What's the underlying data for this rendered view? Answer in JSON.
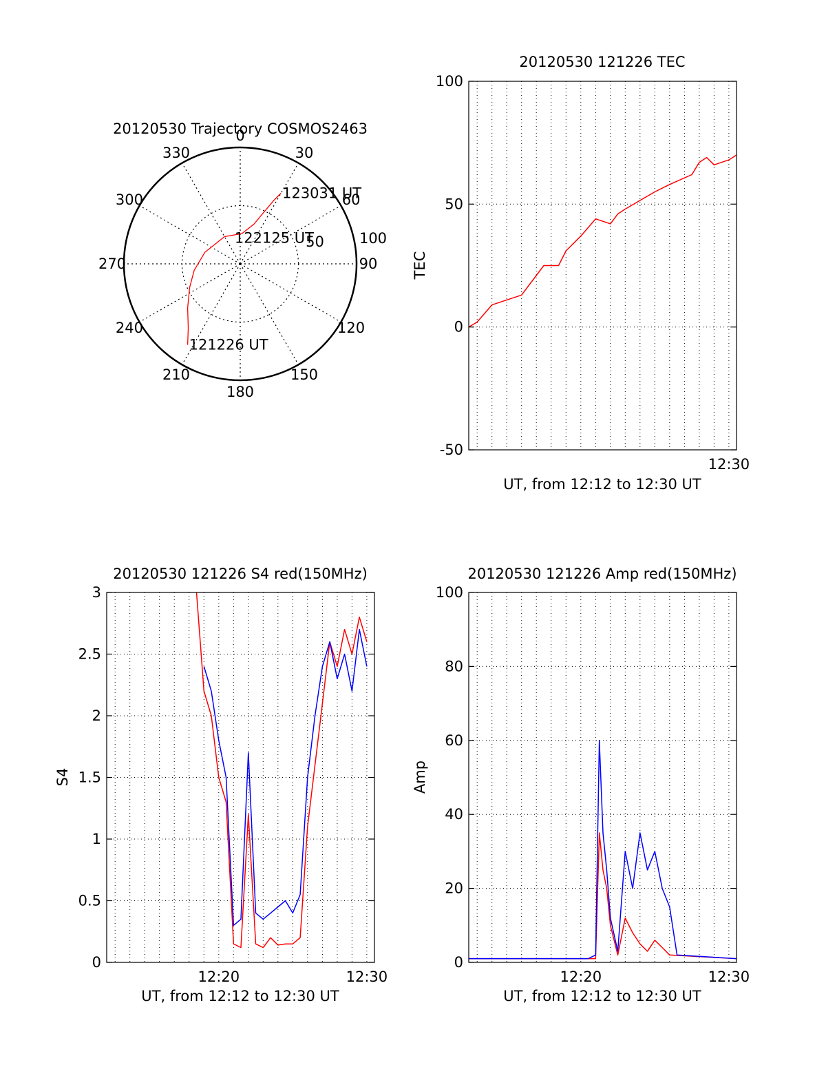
{
  "chart_data": [
    {
      "type": "polar",
      "title": "20120530 Trajectory COSMOS2463",
      "azimuth_labels": [
        "0",
        "30",
        "60",
        "90",
        "120",
        "150",
        "180",
        "210",
        "240",
        "270",
        "300",
        "330"
      ],
      "radial_labels": [
        "50",
        "100"
      ],
      "rlim": [
        0,
        100
      ],
      "grid": true,
      "series": [
        {
          "color": "#ff0000",
          "points": [
            {
              "az": 213,
              "r": 83
            },
            {
              "az": 219,
              "r": 71
            },
            {
              "az": 230,
              "r": 59
            },
            {
              "az": 245,
              "r": 48
            },
            {
              "az": 262,
              "r": 40
            },
            {
              "az": 288,
              "r": 32
            },
            {
              "az": 330,
              "r": 27
            },
            {
              "az": 3,
              "r": 26
            },
            {
              "az": 19,
              "r": 36
            },
            {
              "az": 25,
              "r": 50
            },
            {
              "az": 28,
              "r": 62
            },
            {
              "az": 30,
              "r": 70
            }
          ]
        }
      ],
      "annotations": [
        {
          "text": "123031 UT",
          "az": 30,
          "r": 70
        },
        {
          "text": "122125 UT",
          "az": 345,
          "r": 23
        },
        {
          "text": "121226 UT",
          "az": 213,
          "r": 83
        }
      ]
    },
    {
      "type": "line",
      "title": "20120530 121226 TEC",
      "xlabel": "UT, from 12:12 to 12:30 UT",
      "ylabel": "TEC",
      "xlim": [
        "12:12:26",
        "12:30:31"
      ],
      "ylim": [
        -50,
        100
      ],
      "yticks": [
        -50,
        0,
        50,
        100
      ],
      "xticks": [
        "12:30"
      ],
      "grid": true,
      "series": [
        {
          "color": "#ff0000",
          "x": [
            "12:12:26",
            "12:13:00",
            "12:14:00",
            "12:15:00",
            "12:16:00",
            "12:17:30",
            "12:18:30",
            "12:19:00",
            "12:20:00",
            "12:21:00",
            "12:22:00",
            "12:22:30",
            "12:23:00",
            "12:25:00",
            "12:26:00",
            "12:27:30",
            "12:28:00",
            "12:28:30",
            "12:29:00",
            "12:30:00",
            "12:30:31"
          ],
          "y": [
            0,
            2,
            9,
            11,
            13,
            25,
            25,
            31,
            37,
            44,
            42,
            46,
            48,
            55,
            58,
            62,
            67,
            69,
            66,
            68,
            70
          ]
        }
      ]
    },
    {
      "type": "line",
      "title": "20120530 121226 S4 red(150MHz)",
      "xlabel": "UT, from 12:12 to 12:30 UT",
      "ylabel": "S4",
      "xlim": [
        "12:12:26",
        "12:30:31"
      ],
      "ylim": [
        0,
        3
      ],
      "yticks": [
        "0",
        "0.5",
        "1",
        "1.5",
        "2",
        "2.5",
        "3"
      ],
      "xticks": [
        "12:20",
        "12:30"
      ],
      "grid": true,
      "series": [
        {
          "color": "#ff0000",
          "x": [
            "12:18:30",
            "12:19:00",
            "12:19:30",
            "12:20:00",
            "12:20:30",
            "12:21:00",
            "12:21:30",
            "12:22:00",
            "12:22:30",
            "12:23:00",
            "12:23:30",
            "12:24:00",
            "12:24:30",
            "12:25:00",
            "12:25:30",
            "12:26:00",
            "12:26:30",
            "12:27:00",
            "12:27:30",
            "12:28:00",
            "12:28:30",
            "12:29:00",
            "12:29:30",
            "12:30:00"
          ],
          "y": [
            3,
            2.2,
            2.0,
            1.5,
            1.3,
            0.15,
            0.12,
            1.2,
            0.15,
            0.12,
            0.2,
            0.14,
            0.15,
            0.15,
            0.2,
            1.1,
            1.6,
            2.1,
            2.6,
            2.4,
            2.7,
            2.5,
            2.8,
            2.6
          ]
        },
        {
          "color": "#0000ff",
          "x": [
            "12:19:00",
            "12:19:30",
            "12:20:00",
            "12:20:30",
            "12:21:00",
            "12:21:30",
            "12:22:00",
            "12:22:30",
            "12:23:00",
            "12:23:30",
            "12:24:00",
            "12:24:30",
            "12:25:00",
            "12:25:30",
            "12:26:00",
            "12:26:30",
            "12:27:00",
            "12:27:30",
            "12:28:00",
            "12:28:30",
            "12:29:00",
            "12:29:30",
            "12:30:00"
          ],
          "y": [
            2.4,
            2.2,
            1.8,
            1.5,
            0.3,
            0.35,
            1.7,
            0.4,
            0.35,
            0.4,
            0.45,
            0.5,
            0.4,
            0.55,
            1.5,
            2.0,
            2.4,
            2.6,
            2.3,
            2.5,
            2.2,
            2.7,
            2.4
          ]
        }
      ]
    },
    {
      "type": "line",
      "title": "20120530 121226 Amp red(150MHz)",
      "xlabel": "UT, from 12:12 to 12:30 UT",
      "ylabel": "Amp",
      "xlim": [
        "12:12:26",
        "12:30:31"
      ],
      "ylim": [
        0,
        100
      ],
      "yticks": [
        0,
        20,
        40,
        60,
        80,
        100
      ],
      "xticks": [
        "12:20",
        "12:30"
      ],
      "grid": true,
      "series": [
        {
          "color": "#ff0000",
          "x": [
            "12:12:26",
            "12:21:00",
            "12:21:15",
            "12:21:30",
            "12:21:45",
            "12:22:00",
            "12:22:30",
            "12:23:00",
            "12:23:30",
            "12:24:00",
            "12:24:30",
            "12:25:00",
            "12:25:30",
            "12:26:00",
            "12:30:31"
          ],
          "y": [
            1,
            1,
            35,
            25,
            20,
            10,
            2,
            12,
            8,
            5,
            3,
            6,
            4,
            2,
            1
          ]
        },
        {
          "color": "#0000ff",
          "x": [
            "12:12:26",
            "12:20:30",
            "12:21:00",
            "12:21:15",
            "12:21:30",
            "12:21:45",
            "12:22:00",
            "12:22:30",
            "12:23:00",
            "12:23:30",
            "12:24:00",
            "12:24:30",
            "12:25:00",
            "12:25:30",
            "12:26:00",
            "12:26:30",
            "12:30:31"
          ],
          "y": [
            1,
            1,
            2,
            60,
            35,
            25,
            12,
            3,
            30,
            20,
            35,
            25,
            30,
            20,
            15,
            2,
            1
          ]
        }
      ]
    }
  ]
}
